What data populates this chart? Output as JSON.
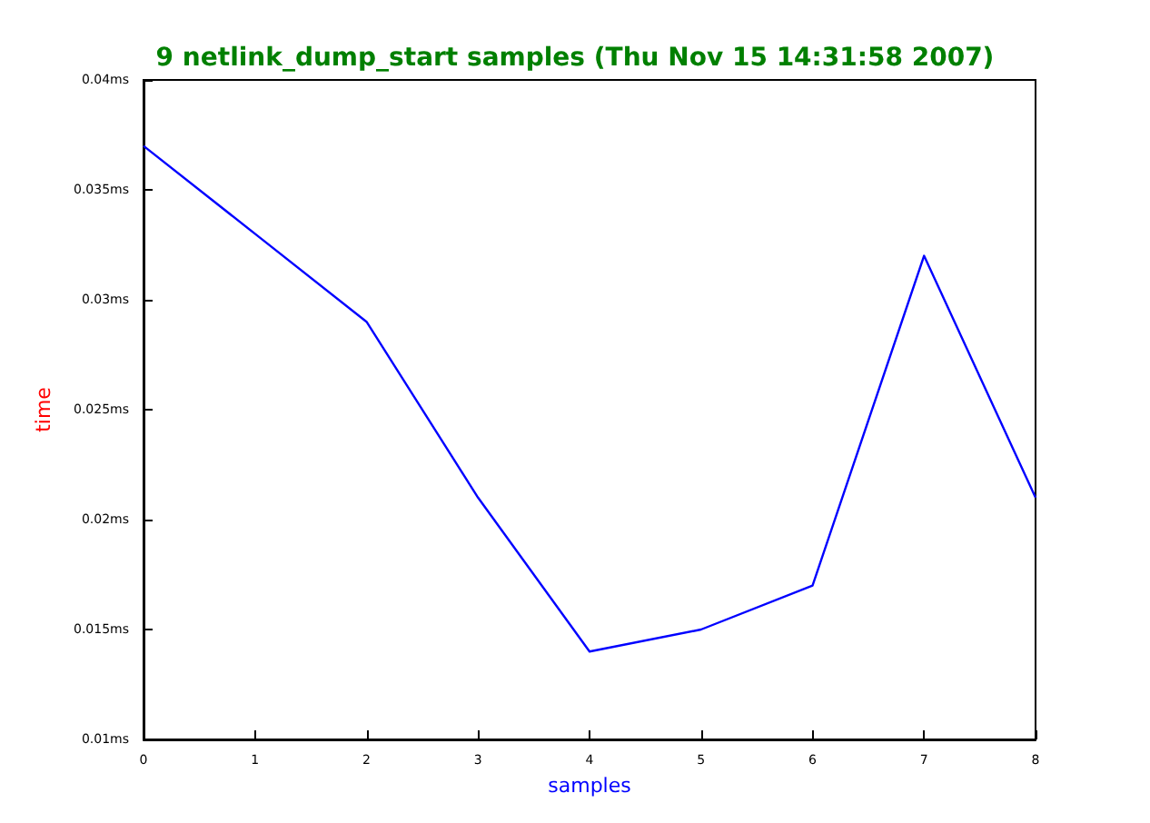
{
  "chart_data": {
    "type": "line",
    "title": "9 netlink_dump_start samples (Thu Nov 15 14:31:58 2007)",
    "xlabel": "samples",
    "ylabel": "time",
    "x": [
      0,
      1,
      2,
      3,
      4,
      5,
      6,
      7,
      8
    ],
    "series": [
      {
        "color": "#0000ff",
        "values": [
          0.037,
          0.033,
          0.029,
          0.021,
          0.014,
          0.015,
          0.017,
          0.032,
          0.021
        ]
      }
    ],
    "xlim": [
      0,
      8
    ],
    "xticks": [
      0,
      1,
      2,
      3,
      4,
      5,
      6,
      7,
      8
    ],
    "ylim": [
      0.01,
      0.04
    ],
    "yticks": [
      {
        "value": 0.01,
        "label": "0.01ms"
      },
      {
        "value": 0.015,
        "label": "0.015ms"
      },
      {
        "value": 0.02,
        "label": "0.02ms"
      },
      {
        "value": 0.025,
        "label": "0.025ms"
      },
      {
        "value": 0.03,
        "label": "0.03ms"
      },
      {
        "value": 0.035,
        "label": "0.035ms"
      },
      {
        "value": 0.04,
        "label": "0.04ms"
      }
    ],
    "grid": false,
    "marker": "none",
    "line_style": "solid"
  }
}
